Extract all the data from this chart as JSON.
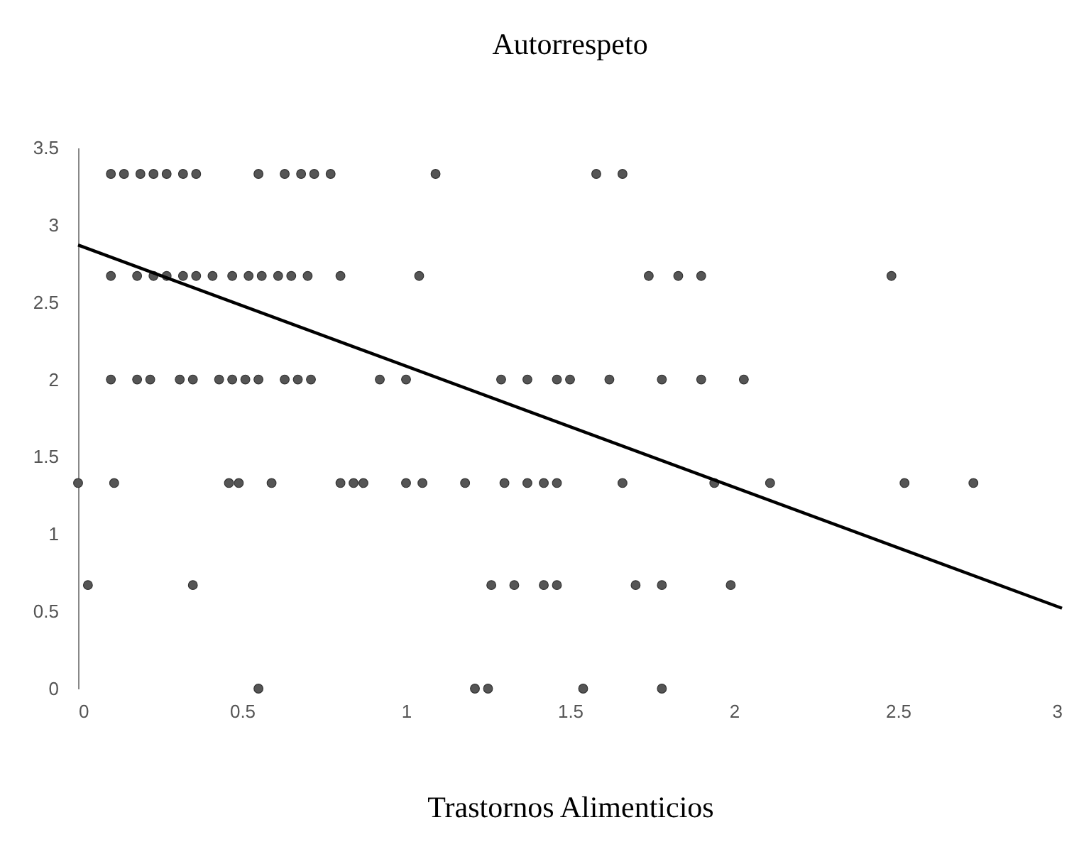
{
  "chart_data": {
    "type": "scatter",
    "title": "Autorrespeto",
    "xlabel": "Trastornos Alimenticios",
    "xlim": [
      0,
      3
    ],
    "ylim": [
      0,
      3.5
    ],
    "xticks": [
      0,
      0.5,
      1,
      1.5,
      2,
      2.5,
      3
    ],
    "yticks": [
      0,
      0.5,
      1,
      1.5,
      2,
      2.5,
      3,
      3.5
    ],
    "grid": false,
    "marker": "circle",
    "series": [
      {
        "color": "#555555",
        "x": [
          0.1,
          0.14,
          0.19,
          0.23,
          0.27,
          0.32,
          0.36,
          0.55,
          0.63,
          0.68,
          0.72,
          0.77,
          1.09,
          1.58,
          1.66,
          0.1,
          0.18,
          0.23,
          0.27,
          0.32,
          0.36,
          0.41,
          0.47,
          0.52,
          0.56,
          0.61,
          0.65,
          0.7,
          0.8,
          1.04,
          1.74,
          1.83,
          1.9,
          2.48,
          0.1,
          0.18,
          0.22,
          0.31,
          0.35,
          0.43,
          0.47,
          0.51,
          0.55,
          0.63,
          0.67,
          0.71,
          0.92,
          1.0,
          1.29,
          1.37,
          1.46,
          1.5,
          1.62,
          1.78,
          1.9,
          2.03,
          0,
          0.11,
          0.46,
          0.49,
          0.59,
          0.8,
          0.84,
          0.87,
          1.0,
          1.05,
          1.18,
          1.3,
          1.37,
          1.42,
          1.46,
          1.66,
          1.94,
          2.11,
          2.52,
          2.73,
          0.03,
          0.35,
          1.26,
          1.33,
          1.42,
          1.46,
          1.7,
          1.78,
          1.99,
          0.55,
          1.21,
          1.25,
          1.54,
          1.78
        ],
        "values": [
          3.33,
          3.33,
          3.33,
          3.33,
          3.33,
          3.33,
          3.33,
          3.33,
          3.33,
          3.33,
          3.33,
          3.33,
          3.33,
          3.33,
          3.33,
          2.67,
          2.67,
          2.67,
          2.67,
          2.67,
          2.67,
          2.67,
          2.67,
          2.67,
          2.67,
          2.67,
          2.67,
          2.67,
          2.67,
          2.67,
          2.67,
          2.67,
          2.67,
          2.67,
          2,
          2,
          2,
          2,
          2,
          2,
          2,
          2,
          2,
          2,
          2,
          2,
          2,
          2,
          2,
          2,
          2,
          2,
          2,
          2,
          2,
          2,
          1.33,
          1.33,
          1.33,
          1.33,
          1.33,
          1.33,
          1.33,
          1.33,
          1.33,
          1.33,
          1.33,
          1.33,
          1.33,
          1.33,
          1.33,
          1.33,
          1.33,
          1.33,
          1.33,
          1.33,
          0.67,
          0.67,
          0.67,
          0.67,
          0.67,
          0.67,
          0.67,
          0.67,
          0.67,
          0,
          0,
          0,
          0,
          0
        ]
      },
      {
        "type": "line",
        "marker": "none",
        "color": "#000000",
        "x": [
          0,
          3
        ],
        "values": [
          2.87,
          0.52
        ]
      }
    ]
  }
}
